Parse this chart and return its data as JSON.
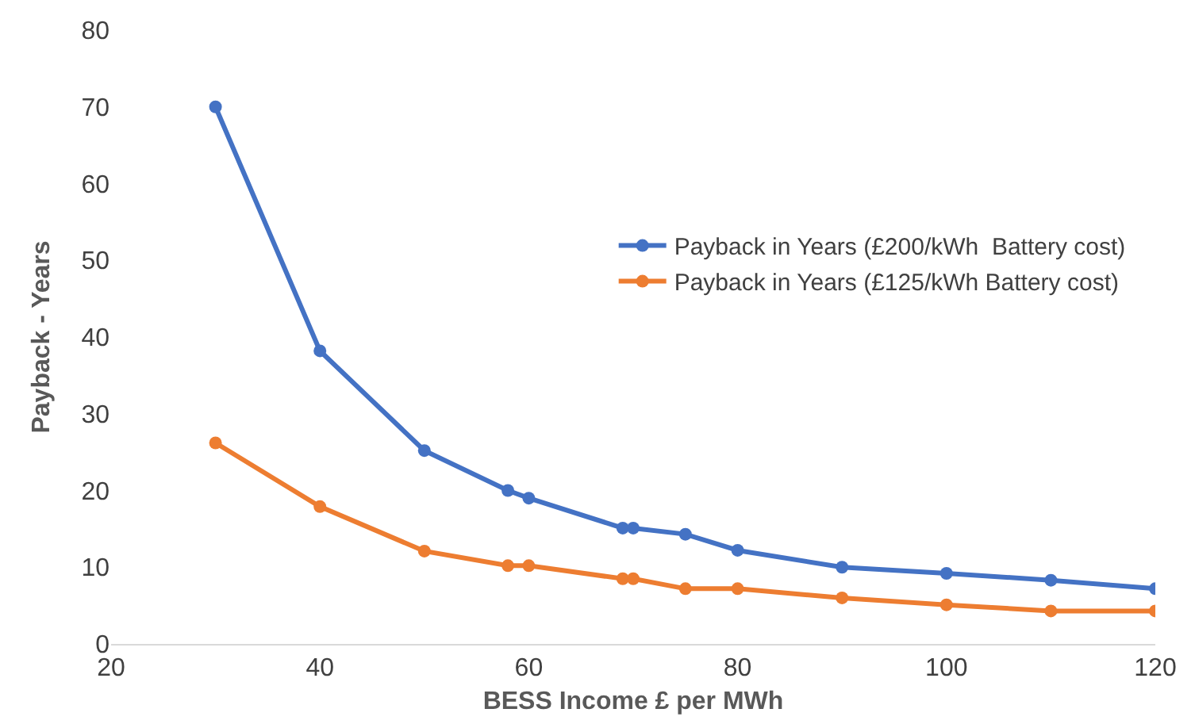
{
  "chart_data": {
    "type": "line",
    "xlabel": "BESS Income £ per MWh",
    "ylabel": "Payback - Years",
    "xlim": [
      20,
      120
    ],
    "xticks": [
      20,
      40,
      60,
      80,
      100,
      120
    ],
    "ylim": [
      0,
      80
    ],
    "yticks": [
      0,
      10,
      20,
      30,
      40,
      50,
      60,
      70,
      80
    ],
    "legend": "right",
    "marker": "circle",
    "line_style": "solid",
    "x": [
      30,
      40,
      50,
      58,
      60,
      69,
      70,
      75,
      80,
      90,
      100,
      110,
      120
    ],
    "series": [
      {
        "name": "Payback in Years (£200/kWh  Battery cost)",
        "color": "#4472c4",
        "values": [
          70,
          38.2,
          25.2,
          20,
          19,
          15.1,
          15.1,
          14.3,
          12.2,
          10,
          9.2,
          8.3,
          7.2
        ]
      },
      {
        "name": "Payback in Years (£125/kWh Battery cost)",
        "color": "#ed7d31",
        "values": [
          26.2,
          17.9,
          12.1,
          10.2,
          10.2,
          8.5,
          8.5,
          7.2,
          7.2,
          6,
          5.1,
          4.3,
          4.3
        ]
      }
    ]
  }
}
